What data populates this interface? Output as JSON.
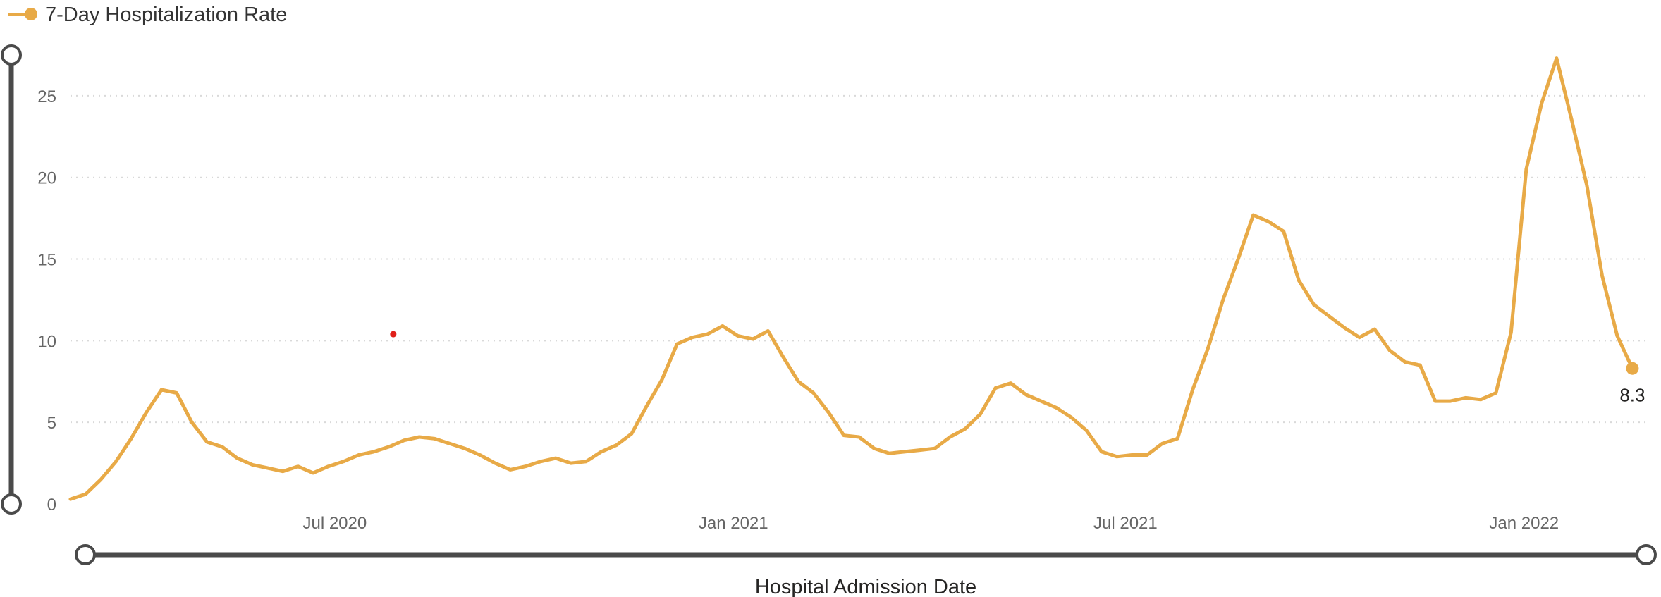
{
  "legend": {
    "label": "7-Day Hospitalization Rate"
  },
  "chart_data": {
    "type": "line",
    "title": "",
    "xlabel": "Hospital Admission Date",
    "ylabel": "",
    "x_type": "date",
    "xlim": [
      "2020-03-01",
      "2022-02-28"
    ],
    "ylim": [
      0,
      27.5
    ],
    "y_ticks": [
      0,
      5,
      10,
      15,
      20,
      25
    ],
    "x_ticks": [
      {
        "date": "2020-07-01",
        "label": "Jul 2020"
      },
      {
        "date": "2021-01-01",
        "label": "Jan 2021"
      },
      {
        "date": "2021-07-01",
        "label": "Jul 2021"
      },
      {
        "date": "2022-01-01",
        "label": "Jan 2022"
      }
    ],
    "grid": true,
    "legend_position": "top-left",
    "colors": {
      "series": "#E8AA47",
      "gridline": "#d9d9d9",
      "slider": "#4a4a4a",
      "annotation_dot": "#e0201a"
    },
    "series": [
      {
        "name": "7-Day Hospitalization Rate",
        "x": [
          "2020-03-01",
          "2020-03-08",
          "2020-03-15",
          "2020-03-22",
          "2020-03-29",
          "2020-04-05",
          "2020-04-12",
          "2020-04-19",
          "2020-04-26",
          "2020-05-03",
          "2020-05-10",
          "2020-05-17",
          "2020-05-24",
          "2020-05-31",
          "2020-06-07",
          "2020-06-14",
          "2020-06-21",
          "2020-06-28",
          "2020-07-05",
          "2020-07-12",
          "2020-07-19",
          "2020-07-26",
          "2020-08-02",
          "2020-08-09",
          "2020-08-16",
          "2020-08-23",
          "2020-08-30",
          "2020-09-06",
          "2020-09-13",
          "2020-09-20",
          "2020-09-27",
          "2020-10-04",
          "2020-10-11",
          "2020-10-18",
          "2020-10-25",
          "2020-11-01",
          "2020-11-08",
          "2020-11-15",
          "2020-11-22",
          "2020-11-29",
          "2020-12-06",
          "2020-12-13",
          "2020-12-20",
          "2020-12-27",
          "2021-01-03",
          "2021-01-10",
          "2021-01-17",
          "2021-01-24",
          "2021-01-31",
          "2021-02-07",
          "2021-02-14",
          "2021-02-21",
          "2021-02-28",
          "2021-03-07",
          "2021-03-14",
          "2021-03-21",
          "2021-03-28",
          "2021-04-04",
          "2021-04-11",
          "2021-04-18",
          "2021-04-25",
          "2021-05-02",
          "2021-05-09",
          "2021-05-16",
          "2021-05-23",
          "2021-05-30",
          "2021-06-06",
          "2021-06-13",
          "2021-06-20",
          "2021-06-27",
          "2021-07-04",
          "2021-07-11",
          "2021-07-18",
          "2021-07-25",
          "2021-08-01",
          "2021-08-08",
          "2021-08-15",
          "2021-08-22",
          "2021-08-29",
          "2021-09-05",
          "2021-09-12",
          "2021-09-19",
          "2021-09-26",
          "2021-10-03",
          "2021-10-10",
          "2021-10-17",
          "2021-10-24",
          "2021-10-31",
          "2021-11-07",
          "2021-11-14",
          "2021-11-21",
          "2021-11-28",
          "2021-12-05",
          "2021-12-12",
          "2021-12-19",
          "2021-12-26",
          "2022-01-02",
          "2022-01-09",
          "2022-01-16",
          "2022-01-23",
          "2022-01-30",
          "2022-02-06",
          "2022-02-13",
          "2022-02-20"
        ],
        "values": [
          0.3,
          0.6,
          1.5,
          2.6,
          4.0,
          5.6,
          7.0,
          6.8,
          5.0,
          3.8,
          3.5,
          2.8,
          2.4,
          2.2,
          2.0,
          2.3,
          1.9,
          2.3,
          2.6,
          3.0,
          3.2,
          3.5,
          3.9,
          4.1,
          4.0,
          3.7,
          3.4,
          3.0,
          2.5,
          2.1,
          2.3,
          2.6,
          2.8,
          2.5,
          2.6,
          3.2,
          3.6,
          4.3,
          6.0,
          7.6,
          9.8,
          10.2,
          10.4,
          10.9,
          10.3,
          10.1,
          10.6,
          9.0,
          7.5,
          6.8,
          5.6,
          4.2,
          4.1,
          3.4,
          3.1,
          3.2,
          3.3,
          3.4,
          4.1,
          4.6,
          5.5,
          7.1,
          7.4,
          6.7,
          6.3,
          5.9,
          5.3,
          4.5,
          3.2,
          2.9,
          3.0,
          3.0,
          3.7,
          4.0,
          7.0,
          9.5,
          12.5,
          15.0,
          17.7,
          17.3,
          16.7,
          13.7,
          12.2,
          11.5,
          10.8,
          10.2,
          10.7,
          9.4,
          8.7,
          8.5,
          6.3,
          6.3,
          6.5,
          6.4,
          6.8,
          10.5,
          20.5,
          24.5,
          27.3,
          23.5,
          19.5,
          14.0,
          10.3,
          8.3
        ]
      }
    ],
    "data_labels": [
      {
        "date": "2022-02-20",
        "value": 8.3,
        "text": "8.3"
      }
    ],
    "annotations": [
      {
        "type": "dot",
        "date": "2020-07-28",
        "value": 10.4
      }
    ]
  }
}
